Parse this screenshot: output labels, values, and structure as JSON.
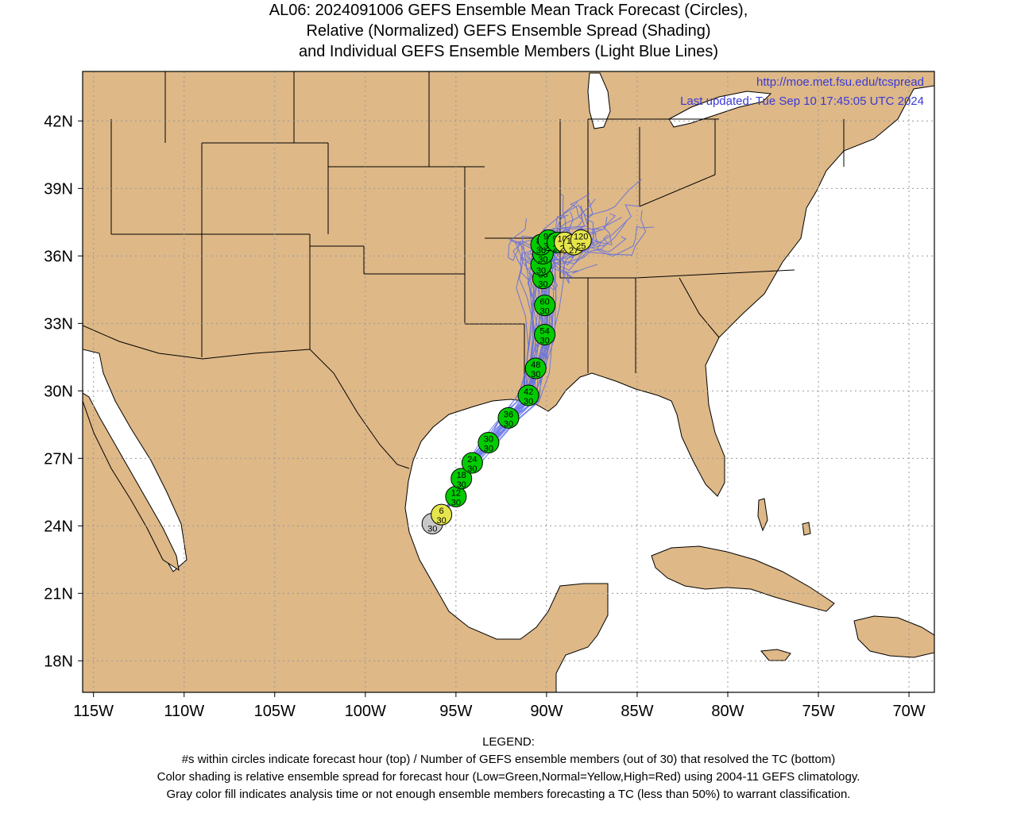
{
  "title": {
    "line1": "AL06: 2024091006 GEFS Ensemble Mean Track Forecast (Circles),",
    "line2": "Relative (Normalized) GEFS Ensemble Spread (Shading)",
    "line3": "and Individual GEFS Ensemble Members (Light Blue Lines)"
  },
  "header_info": {
    "url": "http://moe.met.fsu.edu/tcspread",
    "updated": "Last updated: Tue Sep 10 17:45:05 UTC 2024"
  },
  "axes": {
    "lat_labels": [
      {
        "lat": 42,
        "label": "42N"
      },
      {
        "lat": 39,
        "label": "39N"
      },
      {
        "lat": 36,
        "label": "36N"
      },
      {
        "lat": 33,
        "label": "33N"
      },
      {
        "lat": 30,
        "label": "30N"
      },
      {
        "lat": 27,
        "label": "27N"
      },
      {
        "lat": 24,
        "label": "24N"
      },
      {
        "lat": 21,
        "label": "21N"
      },
      {
        "lat": 18,
        "label": "18N"
      }
    ],
    "lon_labels": [
      {
        "lon": -115,
        "label": "115W"
      },
      {
        "lon": -110,
        "label": "110W"
      },
      {
        "lon": -105,
        "label": "105W"
      },
      {
        "lon": -100,
        "label": "100W"
      },
      {
        "lon": -95,
        "label": "95W"
      },
      {
        "lon": -90,
        "label": "90W"
      },
      {
        "lon": -85,
        "label": "85W"
      },
      {
        "lon": -80,
        "label": "80W"
      },
      {
        "lon": -75,
        "label": "75W"
      },
      {
        "lon": -70,
        "label": "70W"
      }
    ],
    "lon_range": [
      -115.6,
      -68.6
    ],
    "lat_range": [
      16.6,
      44.2
    ],
    "grid": "dotted"
  },
  "colors": {
    "land": "#deb887",
    "water": "#ffffff",
    "low_spread": "#00cc00",
    "normal_spread": "#e6e64c",
    "analysis": "#c8c8c8",
    "member_tracks": "#5a6be6",
    "url_text": "#3a3ad6"
  },
  "track": [
    {
      "hour": "",
      "members": "30",
      "lon": -96.3,
      "lat": 24.1,
      "spread": "analysis"
    },
    {
      "hour": "6",
      "members": "30",
      "lon": -95.8,
      "lat": 24.5,
      "spread": "normal"
    },
    {
      "hour": "12",
      "members": "30",
      "lon": -95.0,
      "lat": 25.3,
      "spread": "low"
    },
    {
      "hour": "18",
      "members": "30",
      "lon": -94.7,
      "lat": 26.1,
      "spread": "low"
    },
    {
      "hour": "24",
      "members": "30",
      "lon": -94.1,
      "lat": 26.8,
      "spread": "low"
    },
    {
      "hour": "30",
      "members": "30",
      "lon": -93.2,
      "lat": 27.7,
      "spread": "low"
    },
    {
      "hour": "36",
      "members": "30",
      "lon": -92.1,
      "lat": 28.8,
      "spread": "low"
    },
    {
      "hour": "42",
      "members": "30",
      "lon": -91.0,
      "lat": 29.8,
      "spread": "low"
    },
    {
      "hour": "48",
      "members": "30",
      "lon": -90.6,
      "lat": 31.0,
      "spread": "low"
    },
    {
      "hour": "54",
      "members": "30",
      "lon": -90.1,
      "lat": 32.5,
      "spread": "low"
    },
    {
      "hour": "60",
      "members": "30",
      "lon": -90.1,
      "lat": 33.8,
      "spread": "low"
    },
    {
      "hour": "66",
      "members": "30",
      "lon": -90.2,
      "lat": 35.0,
      "spread": "low"
    },
    {
      "hour": "72",
      "members": "30",
      "lon": -90.3,
      "lat": 35.6,
      "spread": "low"
    },
    {
      "hour": "78",
      "members": "30",
      "lon": -90.2,
      "lat": 36.1,
      "spread": "low"
    },
    {
      "hour": "84",
      "members": "30",
      "lon": -90.3,
      "lat": 36.5,
      "spread": "low"
    },
    {
      "hour": "90",
      "members": "30",
      "lon": -89.9,
      "lat": 36.7,
      "spread": "low"
    },
    {
      "hour": "96",
      "members": "29",
      "lon": -89.4,
      "lat": 36.6,
      "spread": "low"
    },
    {
      "hour": "102",
      "members": "28",
      "lon": -89.0,
      "lat": 36.6,
      "spread": "normal"
    },
    {
      "hour": "108",
      "members": "27",
      "lon": -88.5,
      "lat": 36.5,
      "spread": "normal"
    },
    {
      "hour": "120",
      "members": "25",
      "lon": -88.1,
      "lat": 36.7,
      "spread": "normal"
    }
  ],
  "legend": {
    "heading": "LEGEND:",
    "line1": "#s within circles indicate forecast hour (top) / Number of GEFS ensemble members (out of 30) that resolved the TC (bottom)",
    "line2": "Color shading is relative ensemble spread for forecast hour (Low=Green,Normal=Yellow,High=Red) using 2004-11 GEFS climatology.",
    "line3": "Gray color fill indicates analysis time or not enough ensemble members forecasting a TC (less than 50%) to warrant classification."
  }
}
